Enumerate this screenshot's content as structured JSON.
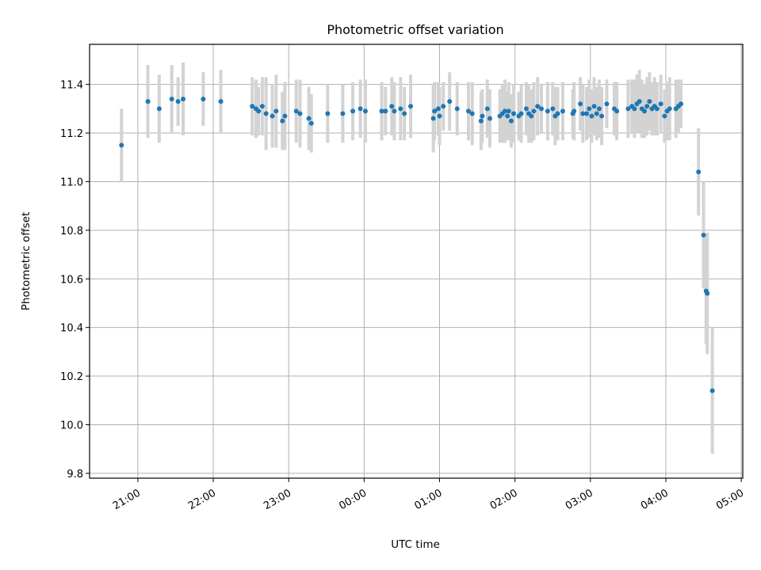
{
  "chart_data": {
    "type": "scatter",
    "title": "Photometric offset variation",
    "xlabel": "UTC time",
    "ylabel": "Photometric offset",
    "x_tick_labels": [
      "21:00",
      "22:00",
      "23:00",
      "00:00",
      "01:00",
      "02:00",
      "03:00",
      "04:00",
      "05:00"
    ],
    "y_tick_labels": [
      "9.8",
      "10.0",
      "10.2",
      "10.4",
      "10.6",
      "10.8",
      "11.0",
      "11.2",
      "11.4"
    ],
    "x_ticks_hours": [
      21,
      22,
      23,
      24,
      25,
      26,
      27,
      28,
      29
    ],
    "y_ticks": [
      9.8,
      10.0,
      10.2,
      10.4,
      10.6,
      10.8,
      11.0,
      11.2,
      11.4
    ],
    "xlim_hours": [
      20.36,
      29.02
    ],
    "ylim": [
      9.78,
      11.565
    ],
    "grid": true,
    "colors": {
      "points": "#1f77b4",
      "error_bars": "#d3d3d3",
      "grid": "#b0b0b0"
    },
    "series": [
      {
        "points": [
          [
            "20:47",
            11.15,
            0.15
          ],
          [
            "21:08",
            11.33,
            0.15
          ],
          [
            "21:17",
            11.3,
            0.14
          ],
          [
            "21:27",
            11.34,
            0.14
          ],
          [
            "21:32",
            11.33,
            0.1
          ],
          [
            "21:36",
            11.34,
            0.15
          ],
          [
            "21:52",
            11.34,
            0.11
          ],
          [
            "22:06",
            11.33,
            0.13
          ],
          [
            "22:31",
            11.31,
            0.12
          ],
          [
            "22:34",
            11.3,
            0.12
          ],
          [
            "22:36",
            11.29,
            0.1
          ],
          [
            "22:39",
            11.31,
            0.12
          ],
          [
            "22:42",
            11.28,
            0.15
          ],
          [
            "22:47",
            11.27,
            0.13
          ],
          [
            "22:50",
            11.29,
            0.15
          ],
          [
            "22:55",
            11.25,
            0.12
          ],
          [
            "22:57",
            11.27,
            0.14
          ],
          [
            "23:06",
            11.29,
            0.13
          ],
          [
            "23:09",
            11.28,
            0.14
          ],
          [
            "23:16",
            11.26,
            0.13
          ],
          [
            "23:18",
            11.24,
            0.12
          ],
          [
            "23:31",
            11.28,
            0.12
          ],
          [
            "23:43",
            11.28,
            0.12
          ],
          [
            "23:51",
            11.29,
            0.12
          ],
          [
            "23:57",
            11.3,
            0.12
          ],
          [
            "00:01",
            11.29,
            0.13
          ],
          [
            "00:14",
            11.29,
            0.12
          ],
          [
            "00:17",
            11.29,
            0.1
          ],
          [
            "00:22",
            11.31,
            0.12
          ],
          [
            "00:24",
            11.29,
            0.12
          ],
          [
            "00:29",
            11.3,
            0.13
          ],
          [
            "00:32",
            11.28,
            0.11
          ],
          [
            "00:37",
            11.31,
            0.13
          ],
          [
            "00:55",
            11.26,
            0.14
          ],
          [
            "00:56",
            11.29,
            0.12
          ],
          [
            "00:59",
            11.3,
            0.11
          ],
          [
            "01:00",
            11.27,
            0.12
          ],
          [
            "01:03",
            11.31,
            0.1
          ],
          [
            "01:08",
            11.33,
            0.12
          ],
          [
            "01:14",
            11.3,
            0.11
          ],
          [
            "01:23",
            11.29,
            0.12
          ],
          [
            "01:26",
            11.28,
            0.13
          ],
          [
            "01:33",
            11.25,
            0.12
          ],
          [
            "01:34",
            11.27,
            0.11
          ],
          [
            "01:38",
            11.3,
            0.12
          ],
          [
            "01:40",
            11.26,
            0.12
          ],
          [
            "01:48",
            11.27,
            0.11
          ],
          [
            "01:50",
            11.28,
            0.12
          ],
          [
            "01:52",
            11.29,
            0.13
          ],
          [
            "01:54",
            11.27,
            0.1
          ],
          [
            "01:55",
            11.29,
            0.12
          ],
          [
            "01:57",
            11.25,
            0.11
          ],
          [
            "01:59",
            11.28,
            0.12
          ],
          [
            "02:03",
            11.27,
            0.1
          ],
          [
            "02:05",
            11.28,
            0.12
          ],
          [
            "02:09",
            11.3,
            0.11
          ],
          [
            "02:11",
            11.28,
            0.12
          ],
          [
            "02:13",
            11.27,
            0.11
          ],
          [
            "02:15",
            11.29,
            0.12
          ],
          [
            "02:18",
            11.31,
            0.12
          ],
          [
            "02:21",
            11.3,
            0.1
          ],
          [
            "02:26",
            11.29,
            0.12
          ],
          [
            "02:30",
            11.3,
            0.11
          ],
          [
            "02:32",
            11.27,
            0.12
          ],
          [
            "02:34",
            11.28,
            0.11
          ],
          [
            "02:38",
            11.29,
            0.12
          ],
          [
            "02:46",
            11.28,
            0.1
          ],
          [
            "02:47",
            11.29,
            0.12
          ],
          [
            "02:52",
            11.32,
            0.11
          ],
          [
            "02:54",
            11.28,
            0.12
          ],
          [
            "02:57",
            11.28,
            0.11
          ],
          [
            "02:59",
            11.3,
            0.12
          ],
          [
            "03:01",
            11.27,
            0.11
          ],
          [
            "03:03",
            11.31,
            0.12
          ],
          [
            "03:05",
            11.28,
            0.11
          ],
          [
            "03:07",
            11.3,
            0.12
          ],
          [
            "03:09",
            11.27,
            0.12
          ],
          [
            "03:13",
            11.32,
            0.1
          ],
          [
            "03:19",
            11.3,
            0.11
          ],
          [
            "03:21",
            11.29,
            0.12
          ],
          [
            "03:30",
            11.3,
            0.12
          ],
          [
            "03:33",
            11.31,
            0.11
          ],
          [
            "03:35",
            11.3,
            0.12
          ],
          [
            "03:37",
            11.32,
            0.12
          ],
          [
            "03:39",
            11.33,
            0.13
          ],
          [
            "03:41",
            11.3,
            0.12
          ],
          [
            "03:43",
            11.29,
            0.11
          ],
          [
            "03:45",
            11.31,
            0.12
          ],
          [
            "03:47",
            11.33,
            0.12
          ],
          [
            "03:49",
            11.3,
            0.11
          ],
          [
            "03:51",
            11.31,
            0.12
          ],
          [
            "03:53",
            11.3,
            0.11
          ],
          [
            "03:56",
            11.32,
            0.12
          ],
          [
            "03:59",
            11.27,
            0.11
          ],
          [
            "04:01",
            11.29,
            0.12
          ],
          [
            "04:03",
            11.3,
            0.13
          ],
          [
            "04:08",
            11.3,
            0.12
          ],
          [
            "04:10",
            11.31,
            0.11
          ],
          [
            "04:12",
            11.32,
            0.1
          ],
          [
            "04:26",
            11.04,
            0.18
          ],
          [
            "04:30",
            10.78,
            0.22
          ],
          [
            "04:32",
            10.55,
            0.22
          ],
          [
            "04:33",
            10.54,
            0.25
          ],
          [
            "04:37",
            10.14,
            0.26
          ]
        ]
      }
    ]
  }
}
